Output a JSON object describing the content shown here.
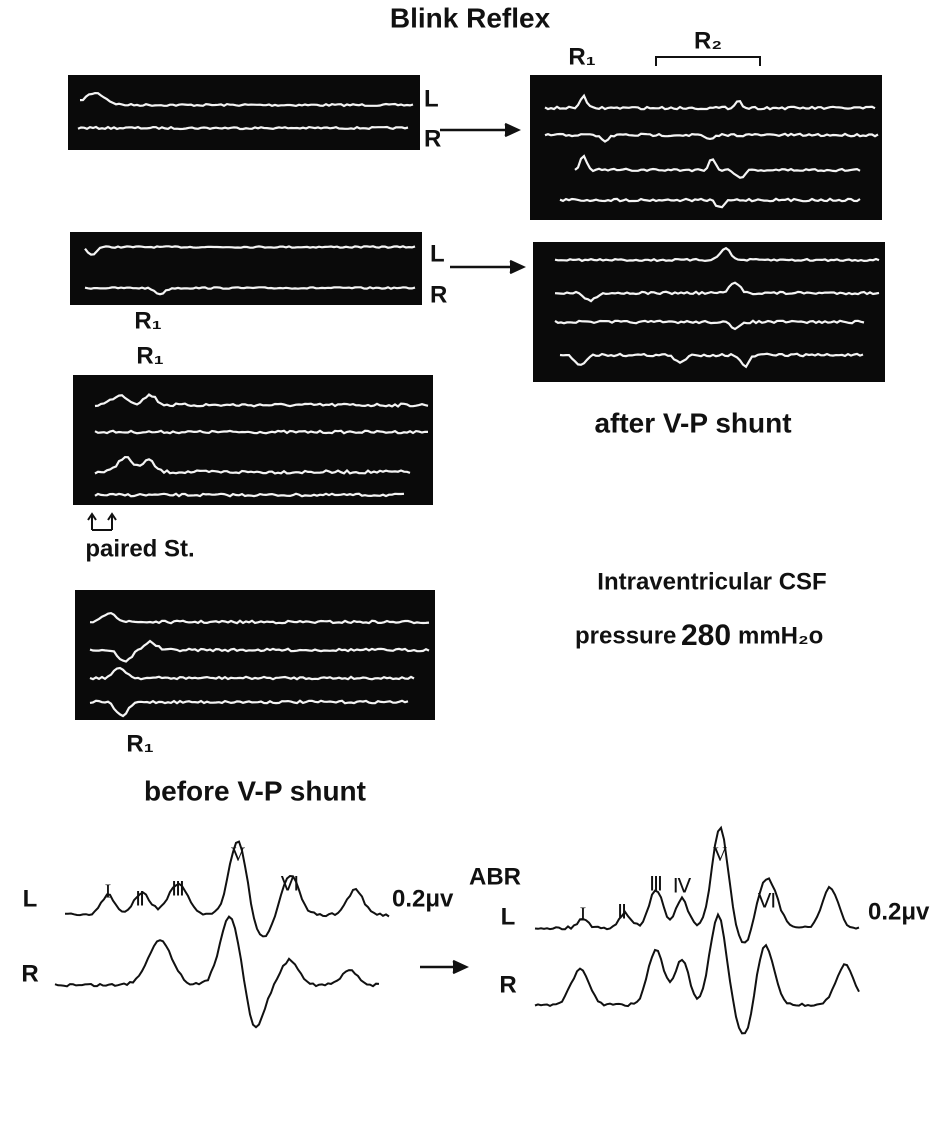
{
  "title": "Blink Reflex",
  "before": {
    "panel1": {
      "left": "L",
      "right": "R"
    },
    "panel2": {
      "left": "L",
      "right": "R",
      "marker": "R₁"
    },
    "panel3": {
      "marker": "R₁",
      "note": "paired St."
    },
    "panel4": {
      "marker": "R₁"
    },
    "caption": "before V-P shunt"
  },
  "after": {
    "markers": [
      "R₁",
      "R₂"
    ],
    "caption": "after V-P shunt"
  },
  "pressure": {
    "line1": "Intraventricular CSF",
    "label": "pressure",
    "value": "280",
    "unit": "mmH₂o"
  },
  "abr": {
    "title": "ABR",
    "before": {
      "waves": [
        "I",
        "Ⅱ",
        "Ⅲ",
        "V",
        "Ⅵ"
      ],
      "channels": [
        "L",
        "R"
      ],
      "scale": "0.2μv"
    },
    "after": {
      "waves": [
        "I",
        "Ⅱ",
        "Ⅲ",
        "Ⅳ",
        "V",
        "Ⅵ"
      ],
      "channels": [
        "L",
        "R"
      ],
      "scale": "0.2μv"
    }
  }
}
